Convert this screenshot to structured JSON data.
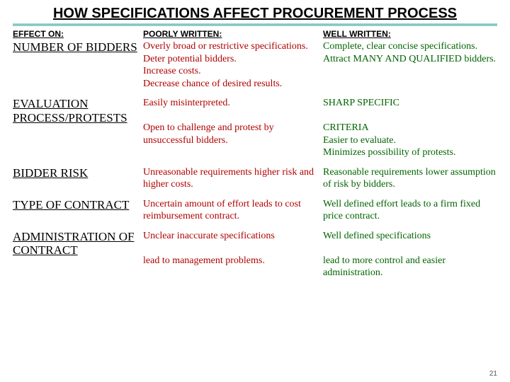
{
  "title": "HOW SPECIFICATIONS AFFECT PROCUREMENT PROCESS",
  "headers": {
    "effect": "EFFECT ON:",
    "poor": "POORLY WRITTEN:",
    "well": "WELL WRITTEN:"
  },
  "rows": [
    {
      "effect": "NUMBER OF BIDDERS",
      "poor": "Overly broad or restrictive specifications.\nDeter potential bidders.\nIncrease costs.\nDecrease chance of desired results.",
      "well": "Complete, clear concise specifications.\nAttract MANY AND QUALIFIED bidders."
    },
    {
      "effect": "EVALUATION PROCESS/PROTESTS",
      "poor": "Easily misinterpreted.\n\nOpen to challenge and protest by unsuccessful bidders.",
      "well": "SHARP SPECIFIC\n\nCRITERIA\nEasier to evaluate.\nMinimizes possibility of protests."
    },
    {
      "effect": "BIDDER RISK",
      "poor": "Unreasonable requirements higher risk and higher costs.",
      "well": "Reasonable requirements lower assumption of risk by bidders."
    },
    {
      "effect": "TYPE OF CONTRACT",
      "poor": "Uncertain amount of effort leads to cost reimbursement contract.",
      "well": "Well defined effort leads to a firm fixed price contract."
    },
    {
      "effect": "ADMINISTRATION OF CONTRACT",
      "poor": "Unclear inaccurate specifications\n\nlead to management problems.",
      "well": "Well defined specifications\n\nlead to more control and easier administration."
    }
  ],
  "page_number": "21",
  "colors": {
    "poor": "#b00000",
    "well": "#006400",
    "divider": "#7fbfbf"
  },
  "fonts": {
    "title_size": 20,
    "effect_size": 17,
    "body_size": 14,
    "header_size": 12
  }
}
